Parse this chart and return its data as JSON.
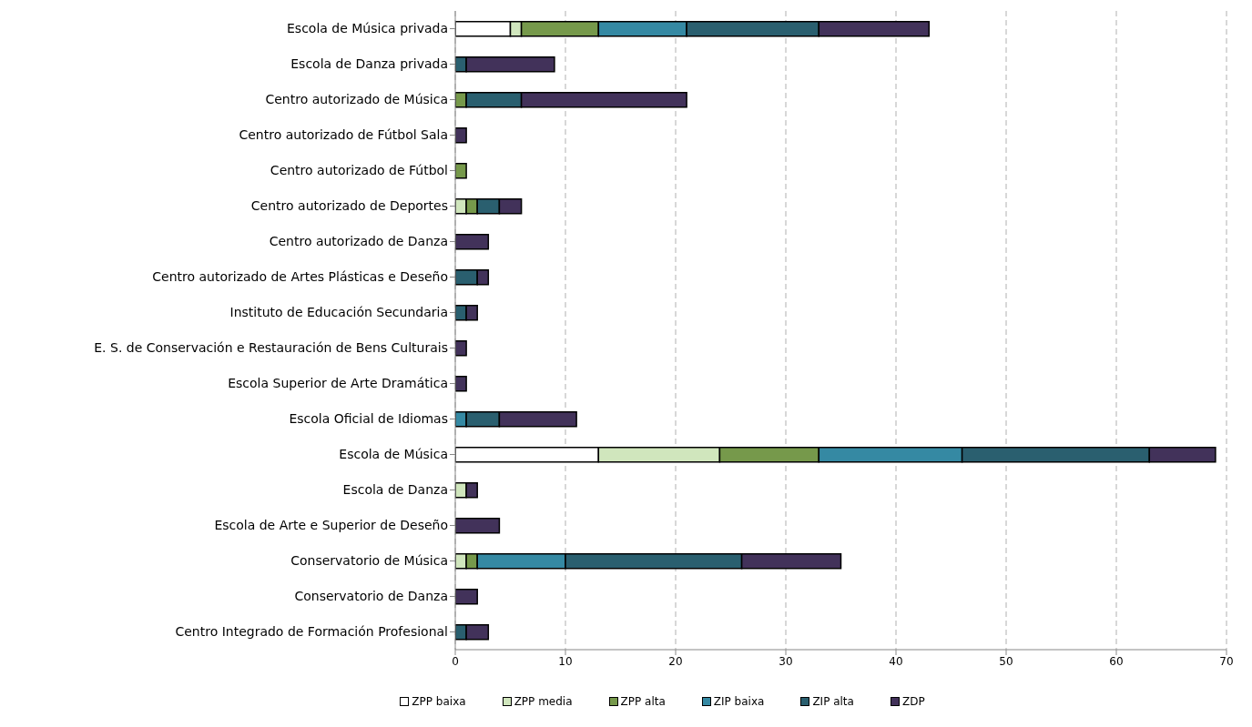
{
  "chart_data": {
    "type": "bar",
    "orientation": "horizontal",
    "stacked": true,
    "grid": "x",
    "legend": "bottom",
    "categories": [
      "Escola de Música privada",
      "Escola de Danza privada",
      "Centro autorizado de Música",
      "Centro autorizado de Fútbol Sala",
      "Centro autorizado de Fútbol",
      "Centro autorizado de Deportes",
      "Centro autorizado de Danza",
      "Centro autorizado de Artes Plásticas e Deseño",
      "Instituto de Educación Secundaria",
      "E. S. de Conservación e Restauración de Bens Culturais",
      "Escola Superior de Arte Dramática",
      "Escola Oficial de Idiomas",
      "Escola de Música",
      "Escola de Danza",
      "Escola de Arte e Superior de Deseño",
      "Conservatorio de Música",
      "Conservatorio de Danza",
      "Centro Integrado de Formación Profesional"
    ],
    "xlim": [
      0,
      70
    ],
    "xticks": [
      0,
      10,
      20,
      30,
      40,
      50,
      60,
      70
    ],
    "series": [
      {
        "name": "ZPP baixa",
        "color": "#ffffff",
        "values": [
          5,
          null,
          null,
          null,
          null,
          null,
          null,
          null,
          null,
          null,
          null,
          null,
          13,
          null,
          null,
          null,
          null,
          null
        ]
      },
      {
        "name": "ZPP media",
        "color": "#d0e6bd",
        "values": [
          1,
          null,
          null,
          null,
          null,
          1,
          null,
          null,
          null,
          null,
          null,
          null,
          11,
          1,
          null,
          1,
          null,
          null
        ]
      },
      {
        "name": "ZPP alta",
        "color": "#76994b",
        "values": [
          7,
          null,
          1,
          null,
          1,
          1,
          null,
          null,
          null,
          null,
          null,
          null,
          9,
          null,
          null,
          1,
          null,
          null
        ]
      },
      {
        "name": "ZIP baixa",
        "color": "#3589a3",
        "values": [
          8,
          null,
          null,
          null,
          null,
          null,
          null,
          null,
          null,
          null,
          null,
          1,
          13,
          null,
          null,
          8,
          null,
          null
        ]
      },
      {
        "name": "ZIP alta",
        "color": "#2a5f6f",
        "values": [
          12,
          1,
          5,
          null,
          null,
          2,
          null,
          2,
          1,
          null,
          null,
          3,
          17,
          null,
          null,
          16,
          null,
          1
        ]
      },
      {
        "name": "ZDP",
        "color": "#42325a",
        "values": [
          10,
          8,
          15,
          1,
          null,
          2,
          3,
          1,
          1,
          1,
          1,
          7,
          6,
          1,
          4,
          9,
          2,
          2
        ]
      }
    ]
  }
}
